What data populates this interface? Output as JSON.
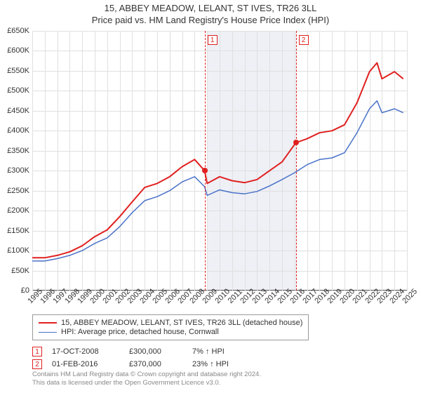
{
  "title": {
    "line1": "15, ABBEY MEADOW, LELANT, ST IVES, TR26 3LL",
    "line2": "Price paid vs. HM Land Registry's House Price Index (HPI)",
    "fontsize": 13,
    "color": "#333333"
  },
  "chart": {
    "type": "line",
    "background_color": "#ffffff",
    "grid_color": "#e0e0e0",
    "axis_color": "#666666",
    "tick_fontsize": 11,
    "x": {
      "min": 1995,
      "max": 2025,
      "ticks": [
        1995,
        1996,
        1997,
        1998,
        1999,
        2000,
        2001,
        2002,
        2003,
        2004,
        2005,
        2006,
        2007,
        2008,
        2009,
        2010,
        2011,
        2012,
        2013,
        2014,
        2015,
        2016,
        2017,
        2018,
        2019,
        2020,
        2021,
        2022,
        2023,
        2024,
        2025
      ]
    },
    "y": {
      "min": 0,
      "max": 650000,
      "step": 50000,
      "labels": [
        "£0",
        "£50K",
        "£100K",
        "£150K",
        "£200K",
        "£250K",
        "£300K",
        "£350K",
        "£400K",
        "£450K",
        "£500K",
        "£550K",
        "£600K",
        "£650K"
      ]
    },
    "shaded_band": {
      "from": 2009,
      "to": 2016.1,
      "color": "#eef0f6"
    },
    "series": [
      {
        "name": "property",
        "label": "15, ABBEY MEADOW, LELANT, ST IVES, TR26 3LL (detached house)",
        "color": "#e02020",
        "line_width": 2,
        "points": [
          [
            1995,
            82000
          ],
          [
            1996,
            82000
          ],
          [
            1997,
            88000
          ],
          [
            1998,
            97000
          ],
          [
            1999,
            112000
          ],
          [
            2000,
            135000
          ],
          [
            2001,
            152000
          ],
          [
            2002,
            185000
          ],
          [
            2003,
            222000
          ],
          [
            2004,
            258000
          ],
          [
            2005,
            268000
          ],
          [
            2006,
            285000
          ],
          [
            2007,
            310000
          ],
          [
            2008,
            328000
          ],
          [
            2008.8,
            300000
          ],
          [
            2009,
            268000
          ],
          [
            2010,
            285000
          ],
          [
            2011,
            275000
          ],
          [
            2012,
            270000
          ],
          [
            2013,
            278000
          ],
          [
            2014,
            300000
          ],
          [
            2015,
            322000
          ],
          [
            2016.1,
            370000
          ],
          [
            2017,
            380000
          ],
          [
            2018,
            395000
          ],
          [
            2019,
            400000
          ],
          [
            2020,
            415000
          ],
          [
            2021,
            470000
          ],
          [
            2022,
            548000
          ],
          [
            2022.6,
            570000
          ],
          [
            2023,
            530000
          ],
          [
            2024,
            548000
          ],
          [
            2024.7,
            530000
          ]
        ]
      },
      {
        "name": "hpi",
        "label": "HPI: Average price, detached house, Cornwall",
        "color": "#4a72c8",
        "line_width": 1.5,
        "points": [
          [
            1995,
            74000
          ],
          [
            1996,
            74000
          ],
          [
            1997,
            80000
          ],
          [
            1998,
            88000
          ],
          [
            1999,
            100000
          ],
          [
            2000,
            118000
          ],
          [
            2001,
            132000
          ],
          [
            2002,
            160000
          ],
          [
            2003,
            195000
          ],
          [
            2004,
            225000
          ],
          [
            2005,
            235000
          ],
          [
            2006,
            250000
          ],
          [
            2007,
            272000
          ],
          [
            2008,
            285000
          ],
          [
            2008.8,
            260000
          ],
          [
            2009,
            238000
          ],
          [
            2010,
            252000
          ],
          [
            2011,
            245000
          ],
          [
            2012,
            242000
          ],
          [
            2013,
            248000
          ],
          [
            2014,
            262000
          ],
          [
            2015,
            278000
          ],
          [
            2016,
            295000
          ],
          [
            2017,
            315000
          ],
          [
            2018,
            328000
          ],
          [
            2019,
            332000
          ],
          [
            2020,
            345000
          ],
          [
            2021,
            395000
          ],
          [
            2022,
            455000
          ],
          [
            2022.6,
            475000
          ],
          [
            2023,
            445000
          ],
          [
            2024,
            455000
          ],
          [
            2024.7,
            445000
          ]
        ]
      }
    ],
    "sale_markers": [
      {
        "n": "1",
        "x": 2008.8,
        "y": 300000,
        "color": "#e02020",
        "dot_size": 8
      },
      {
        "n": "2",
        "x": 2016.1,
        "y": 370000,
        "color": "#e02020",
        "dot_size": 8
      }
    ]
  },
  "legend": {
    "border_color": "#999999",
    "swatch_width": 26
  },
  "sales": [
    {
      "n": "1",
      "date": "17-OCT-2008",
      "price": "£300,000",
      "delta": "7% ↑ HPI"
    },
    {
      "n": "2",
      "date": "01-FEB-2016",
      "price": "£370,000",
      "delta": "23% ↑ HPI"
    }
  ],
  "attribution": {
    "line1": "Contains HM Land Registry data © Crown copyright and database right 2024.",
    "line2": "This data is licensed under the Open Government Licence v3.0.",
    "color": "#888888",
    "fontsize": 9.5
  }
}
